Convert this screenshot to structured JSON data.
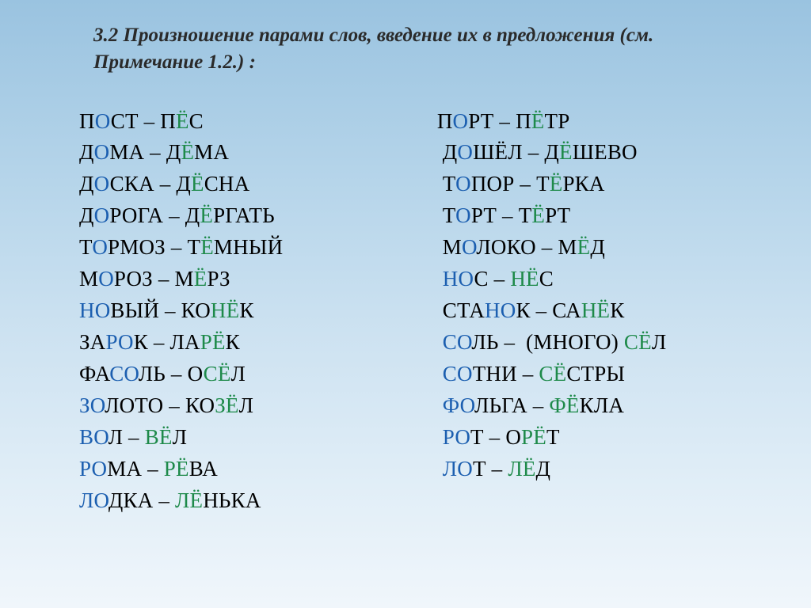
{
  "heading": "3.2 Произношение парами слов, введение их в предложения (см. Примечание 1.2.) :",
  "colors": {
    "blue_highlight": "#1c5fb0",
    "green_highlight": "#1e8a4a",
    "text": "#000000",
    "heading_text": "#2a2a2a",
    "background_gradient": [
      "#9ac3e0",
      "#b6d5ea",
      "#cde2f1",
      "#e1eef7",
      "#f0f6fb"
    ]
  },
  "typography": {
    "heading_fontsize": 25,
    "heading_weight": "bold",
    "heading_style": "italic",
    "pair_fontsize": 27,
    "font_family": "Times New Roman"
  },
  "columns": {
    "left": [
      {
        "lead_pad": "",
        "word_a": {
          "pre": "П",
          "hl": "О",
          "post": "СТ",
          "hlc": "b"
        },
        "sep": " – ",
        "word_b": {
          "pre": "П",
          "hl": "Ё",
          "post": "С",
          "hlc": "g"
        }
      },
      {
        "lead_pad": "",
        "word_a": {
          "pre": "Д",
          "hl": "О",
          "post": "МА",
          "hlc": "b"
        },
        "sep": " – ",
        "word_b": {
          "pre": "Д",
          "hl": "Ё",
          "post": "МА",
          "hlc": "g"
        }
      },
      {
        "lead_pad": "",
        "word_a": {
          "pre": "Д",
          "hl": "О",
          "post": "СКА",
          "hlc": "b"
        },
        "sep": " – ",
        "word_b": {
          "pre": "Д",
          "hl": "Ё",
          "post": "СНА",
          "hlc": "g"
        }
      },
      {
        "lead_pad": "",
        "word_a": {
          "pre": "Д",
          "hl": "О",
          "post": "РОГА",
          "hlc": "b"
        },
        "sep": " – ",
        "word_b": {
          "pre": "Д",
          "hl": "Ё",
          "post": "РГАТЬ",
          "hlc": "g"
        }
      },
      {
        "lead_pad": "",
        "word_a": {
          "pre": "Т",
          "hl": "О",
          "post": "РМОЗ",
          "hlc": "b"
        },
        "sep": " – ",
        "word_b": {
          "pre": "Т",
          "hl": "Ё",
          "post": "МНЫЙ",
          "hlc": "g"
        }
      },
      {
        "lead_pad": "",
        "word_a": {
          "pre": "М",
          "hl": "О",
          "post": "РОЗ",
          "hlc": "b"
        },
        "sep": " – ",
        "word_b": {
          "pre": "М",
          "hl": "Ё",
          "post": "РЗ",
          "hlc": "g"
        }
      },
      {
        "lead_pad": "",
        "word_a": {
          "pre": "",
          "hl": "НО",
          "post": "ВЫЙ",
          "hlc": "b"
        },
        "sep": " – ",
        "word_b": {
          "pre": "КО",
          "hl": "НЁ",
          "post": "К",
          "hlc": "g"
        }
      },
      {
        "lead_pad": "",
        "word_a": {
          "pre": "ЗА",
          "hl": "РО",
          "post": "К",
          "hlc": "b"
        },
        "sep": " – ",
        "word_b": {
          "pre": "ЛА",
          "hl": "РЁ",
          "post": "К",
          "hlc": "g"
        }
      },
      {
        "lead_pad": "",
        "word_a": {
          "pre": "ФА",
          "hl": "СО",
          "post": "ЛЬ",
          "hlc": "b"
        },
        "sep": " – ",
        "word_b": {
          "pre": "О",
          "hl": "СЁ",
          "post": "Л",
          "hlc": "g"
        }
      },
      {
        "lead_pad": "",
        "word_a": {
          "pre": "",
          "hl": "ЗО",
          "post": "ЛОТО",
          "hlc": "b"
        },
        "sep": " – ",
        "word_b": {
          "pre": "КО",
          "hl": "ЗЁ",
          "post": "Л",
          "hlc": "g"
        }
      },
      {
        "lead_pad": "",
        "word_a": {
          "pre": "",
          "hl": "ВО",
          "post": "Л",
          "hlc": "b"
        },
        "sep": " – ",
        "word_b": {
          "pre": "",
          "hl": "ВЁ",
          "post": "Л",
          "hlc": "g"
        }
      },
      {
        "lead_pad": "",
        "word_a": {
          "pre": "",
          "hl": "РО",
          "post": "МА",
          "hlc": "b"
        },
        "sep": " – ",
        "word_b": {
          "pre": "",
          "hl": "РЁ",
          "post": "ВА",
          "hlc": "g"
        }
      },
      {
        "lead_pad": "",
        "word_a": {
          "pre": "",
          "hl": "ЛО",
          "post": "ДКА",
          "hlc": "b"
        },
        "sep": " – ",
        "word_b": {
          "pre": "",
          "hl": "ЛЁ",
          "post": "НЬКА",
          "hlc": "g"
        }
      }
    ],
    "right": [
      {
        "lead_pad": "",
        "word_a": {
          "pre": "П",
          "hl": "О",
          "post": "РТ",
          "hlc": "b"
        },
        "sep": " – ",
        "word_b": {
          "pre": "П",
          "hl": "Ё",
          "post": "ТР",
          "hlc": "g"
        }
      },
      {
        "lead_pad": " ",
        "word_a": {
          "pre": "Д",
          "hl": "О",
          "post": "ШЁЛ",
          "hlc": "b"
        },
        "sep": " – ",
        "word_b": {
          "pre": "Д",
          "hl": "Ё",
          "post": "ШЕВО",
          "hlc": "g"
        }
      },
      {
        "lead_pad": " ",
        "word_a": {
          "pre": "Т",
          "hl": "О",
          "post": "ПОР",
          "hlc": "b"
        },
        "sep": " – ",
        "word_b": {
          "pre": "Т",
          "hl": "Ё",
          "post": "РКА",
          "hlc": "g"
        }
      },
      {
        "lead_pad": " ",
        "word_a": {
          "pre": "Т",
          "hl": "О",
          "post": "РТ",
          "hlc": "b"
        },
        "sep": " – ",
        "word_b": {
          "pre": "Т",
          "hl": "Ё",
          "post": "РТ",
          "hlc": "g"
        }
      },
      {
        "lead_pad": " ",
        "word_a": {
          "pre": "М",
          "hl": "О",
          "post": "ЛОКО",
          "hlc": "b"
        },
        "sep": " – ",
        "word_b": {
          "pre": "М",
          "hl": "Ё",
          "post": "Д",
          "hlc": "g"
        }
      },
      {
        "lead_pad": " ",
        "word_a": {
          "pre": "",
          "hl": "НО",
          "post": "С",
          "hlc": "b"
        },
        "sep": " – ",
        "word_b": {
          "pre": "",
          "hl": "НЁ",
          "post": "С",
          "hlc": "g"
        }
      },
      {
        "lead_pad": " ",
        "word_a": {
          "pre": "СТА",
          "hl": "НО",
          "post": "К",
          "hlc": "b"
        },
        "sep": " – ",
        "word_b": {
          "pre": "СА",
          "hl": "НЁ",
          "post": "К",
          "hlc": "g"
        }
      },
      {
        "lead_pad": " ",
        "word_a": {
          "pre": "",
          "hl": "СО",
          "post": "ЛЬ",
          "hlc": "b"
        },
        "sep": " –  (МНОГО) ",
        "word_b": {
          "pre": "",
          "hl": "СЁ",
          "post": "Л",
          "hlc": "g"
        }
      },
      {
        "lead_pad": " ",
        "word_a": {
          "pre": "",
          "hl": "СО",
          "post": "ТНИ",
          "hlc": "b"
        },
        "sep": " – ",
        "word_b": {
          "pre": "",
          "hl": "СЁ",
          "post": "СТРЫ",
          "hlc": "g"
        }
      },
      {
        "lead_pad": " ",
        "word_a": {
          "pre": "",
          "hl": "ФО",
          "post": "ЛЬГА",
          "hlc": "b"
        },
        "sep": " – ",
        "word_b": {
          "pre": "",
          "hl": "ФЁ",
          "post": "КЛА",
          "hlc": "g"
        }
      },
      {
        "lead_pad": " ",
        "word_a": {
          "pre": "",
          "hl": "РО",
          "post": "Т",
          "hlc": "b"
        },
        "sep": " – ",
        "word_b": {
          "pre": "О",
          "hl": "РЁ",
          "post": "Т",
          "hlc": "g"
        }
      },
      {
        "lead_pad": " ",
        "word_a": {
          "pre": "",
          "hl": "ЛО",
          "post": "Т",
          "hlc": "b"
        },
        "sep": " – ",
        "word_b": {
          "pre": "",
          "hl": "ЛЁ",
          "post": "Д",
          "hlc": "g"
        }
      }
    ]
  }
}
